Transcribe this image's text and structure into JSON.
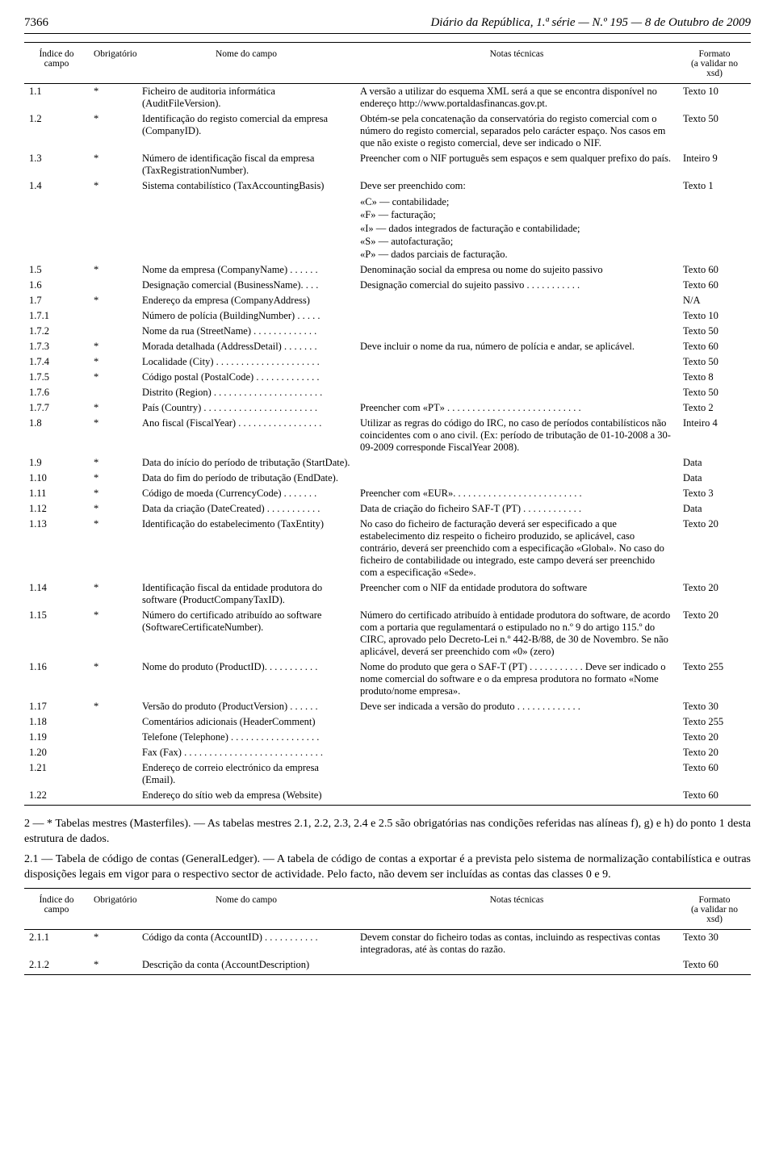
{
  "header": {
    "page_number": "7366",
    "publication": "Diário da República, 1.ª série — N.º 195 — 8 de Outubro de 2009"
  },
  "table_columns": {
    "idx": "Índice do campo",
    "obr": "Obrigatório",
    "nome": "Nome do campo",
    "notas": "Notas técnicas",
    "fmt": "Formato\n(a validar no xsd)"
  },
  "rows1": [
    {
      "idx": "1.1",
      "obr": "*",
      "nome": "Ficheiro de auditoria informática (AuditFileVersion).",
      "notas": "A versão a utilizar do esquema XML será a que se encontra disponível no endereço http://www.portaldasfinancas.gov.pt.",
      "fmt": "Texto 10"
    },
    {
      "idx": "1.2",
      "obr": "*",
      "nome": "Identificação do registo comercial da empresa (CompanyID).",
      "notas": "Obtém-se pela concatenação da conservatória do registo comercial com o número do registo comercial, separados pelo carácter espaço. Nos casos em que não existe o registo comercial, deve ser indicado o NIF.",
      "fmt": "Texto 50"
    },
    {
      "idx": "1.3",
      "obr": "*",
      "nome": "Número de identificação fiscal da empresa (TaxRegistrationNumber).",
      "notas": "Preencher com o NIF português sem espaços e sem qualquer prefixo do país.",
      "fmt": "Inteiro 9"
    },
    {
      "idx": "1.4",
      "obr": "*",
      "nome": "Sistema contabilístico (TaxAccountingBasis)",
      "notas": "Deve ser preenchido com:",
      "fmt": "Texto 1"
    }
  ],
  "quote_block": [
    "«C» — contabilidade;",
    "«F» — facturação;",
    "«I» — dados integrados de facturação e contabilidade;",
    "«S» — autofacturação;",
    "«P» — dados parciais de facturação."
  ],
  "rows2": [
    {
      "idx": "1.5",
      "obr": "*",
      "nome": "Nome da empresa (CompanyName) . . . . . .",
      "notas": "Denominação social da empresa ou nome do sujeito passivo",
      "fmt": "Texto 60"
    },
    {
      "idx": "1.6",
      "obr": "",
      "nome": "Designação comercial (BusinessName). . . .",
      "notas": "Designação comercial do sujeito passivo . . . . . . . . . . .",
      "fmt": "Texto 60"
    },
    {
      "idx": "1.7",
      "obr": "*",
      "nome": "Endereço da empresa (CompanyAddress)",
      "notas": "",
      "fmt": "N/A"
    },
    {
      "idx": "1.7.1",
      "obr": "",
      "nome": "Número de polícia (BuildingNumber) . . . . .",
      "notas": "",
      "fmt": "Texto 10"
    },
    {
      "idx": "1.7.2",
      "obr": "",
      "nome": "Nome da rua (StreetName) . . . . . . . . . . . . .",
      "notas": "",
      "fmt": "Texto 50"
    },
    {
      "idx": "1.7.3",
      "obr": "*",
      "nome": "Morada detalhada (AddressDetail) . . . . . . .",
      "notas": "Deve incluir o nome da rua, número de polícia e andar, se aplicável.",
      "fmt": "Texto 60"
    },
    {
      "idx": "1.7.4",
      "obr": "*",
      "nome": "Localidade (City) . . . . . . . . . . . . . . . . . . . . .",
      "notas": "",
      "fmt": "Texto 50"
    },
    {
      "idx": "1.7.5",
      "obr": "*",
      "nome": "Código postal (PostalCode) . . . . . . . . . . . . .",
      "notas": "",
      "fmt": "Texto 8"
    },
    {
      "idx": "1.7.6",
      "obr": "",
      "nome": "Distrito (Region) . . . . . . . . . . . . . . . . . . . . . .",
      "notas": "",
      "fmt": "Texto 50"
    },
    {
      "idx": "1.7.7",
      "obr": "*",
      "nome": "País (Country) . . . . . . . . . . . . . . . . . . . . . . .",
      "notas": "Preencher com «PT» . . . . . . . . . . . . . . . . . . . . . . . . . . .",
      "fmt": "Texto 2"
    },
    {
      "idx": "1.8",
      "obr": "*",
      "nome": "Ano fiscal (FiscalYear) . . . . . . . . . . . . . . . . .",
      "notas": "Utilizar as regras do código do IRC, no caso de períodos contabilísticos não coincidentes com o ano civil. (Ex: período de tributação de 01-10-2008 a 30-09-2009 corresponde FiscalYear 2008).",
      "fmt": "Inteiro 4"
    },
    {
      "idx": "1.9",
      "obr": "*",
      "nome": "Data do início do período de tributação (StartDate).",
      "notas": "",
      "fmt": "Data"
    },
    {
      "idx": "1.10",
      "obr": "*",
      "nome": "Data do fim do período de tributação (EndDate).",
      "notas": "",
      "fmt": "Data"
    },
    {
      "idx": "1.11",
      "obr": "*",
      "nome": "Código de moeda (CurrencyCode) . . . . . . .",
      "notas": "Preencher com «EUR». . . . . . . . . . . . . . . . . . . . . . . . . .",
      "fmt": "Texto 3"
    },
    {
      "idx": "1.12",
      "obr": "*",
      "nome": "Data da criação (DateCreated) . . . . . . . . . . .",
      "notas": "Data de criação do ficheiro SAF-T (PT) . . . . . . . . . . . .",
      "fmt": "Data"
    },
    {
      "idx": "1.13",
      "obr": "*",
      "nome": "Identificação do estabelecimento (TaxEntity)",
      "notas": "No caso do ficheiro de facturação deverá ser especificado a que estabelecimento diz respeito o ficheiro produzido, se aplicável, caso contrário, deverá ser preenchido com a especificação «Global». No caso do ficheiro de contabilidade ou integrado, este campo deverá ser preenchido com a especificação «Sede».",
      "fmt": "Texto 20"
    },
    {
      "idx": "1.14",
      "obr": "*",
      "nome": "Identificação fiscal da entidade produtora do software (ProductCompanyTaxID).",
      "notas": "Preencher com o NIF da entidade produtora do software",
      "fmt": "Texto 20"
    },
    {
      "idx": "1.15",
      "obr": "*",
      "nome": "Número do certificado atribuído ao software (SoftwareCertificateNumber).",
      "notas": "Número do certificado atribuído à entidade produtora do software, de acordo com a portaria que regulamentará o estipulado no n.º 9 do artigo 115.º do CIRC, aprovado pelo Decreto-Lei n.º 442-B/88, de 30 de Novembro. Se não aplicável, deverá ser preenchido com «0» (zero)",
      "fmt": "Texto 20"
    },
    {
      "idx": "1.16",
      "obr": "*",
      "nome": "Nome do produto (ProductID). . . . . . . . . . .",
      "notas": "Nome do produto que gera o SAF-T (PT) . . . . . . . . . . . Deve ser indicado o nome comercial do software e o da empresa produtora no formato «Nome produto/nome empresa».",
      "fmt": "Texto 255"
    },
    {
      "idx": "1.17",
      "obr": "*",
      "nome": "Versão do produto (ProductVersion) . . . . . .",
      "notas": "Deve ser indicada a versão do produto . . . . . . . . . . . . .",
      "fmt": "Texto 30"
    },
    {
      "idx": "1.18",
      "obr": "",
      "nome": "Comentários adicionais (HeaderComment)",
      "notas": "",
      "fmt": "Texto 255"
    },
    {
      "idx": "1.19",
      "obr": "",
      "nome": "Telefone (Telephone) . . . . . . . . . . . . . . . . . .",
      "notas": "",
      "fmt": "Texto 20"
    },
    {
      "idx": "1.20",
      "obr": "",
      "nome": "Fax (Fax) . . . . . . . . . . . . . . . . . . . . . . . . . . . .",
      "notas": "",
      "fmt": "Texto 20"
    },
    {
      "idx": "1.21",
      "obr": "",
      "nome": "Endereço de correio electrónico da empresa (Email).",
      "notas": "",
      "fmt": "Texto 60"
    },
    {
      "idx": "1.22",
      "obr": "",
      "nome": "Endereço do sítio web da empresa (Website)",
      "notas": "",
      "fmt": "Texto 60"
    }
  ],
  "paragraphs": [
    "2 — * Tabelas mestres (Masterfiles). — As tabelas mestres 2.1, 2.2, 2.3, 2.4 e 2.5 são obrigatórias nas condições referidas nas alíneas f), g) e h) do ponto 1 desta estrutura de dados.",
    "2.1 — Tabela de código de contas (GeneralLedger). — A tabela de código de contas a exportar é a prevista pelo sistema de normalização contabilística e outras disposições legais em vigor para o respectivo sector de actividade. Pelo facto, não devem ser incluídas as contas das classes 0 e 9."
  ],
  "rows3": [
    {
      "idx": "2.1.1",
      "obr": "*",
      "nome": "Código da conta (AccountID) . . . . . . . . . . .",
      "notas": "Devem constar do ficheiro todas as contas, incluindo as respectivas contas integradoras, até às contas do razão.",
      "fmt": "Texto 30"
    },
    {
      "idx": "2.1.2",
      "obr": "*",
      "nome": "Descrição da conta (AccountDescription)",
      "notas": "",
      "fmt": "Texto 60"
    }
  ]
}
